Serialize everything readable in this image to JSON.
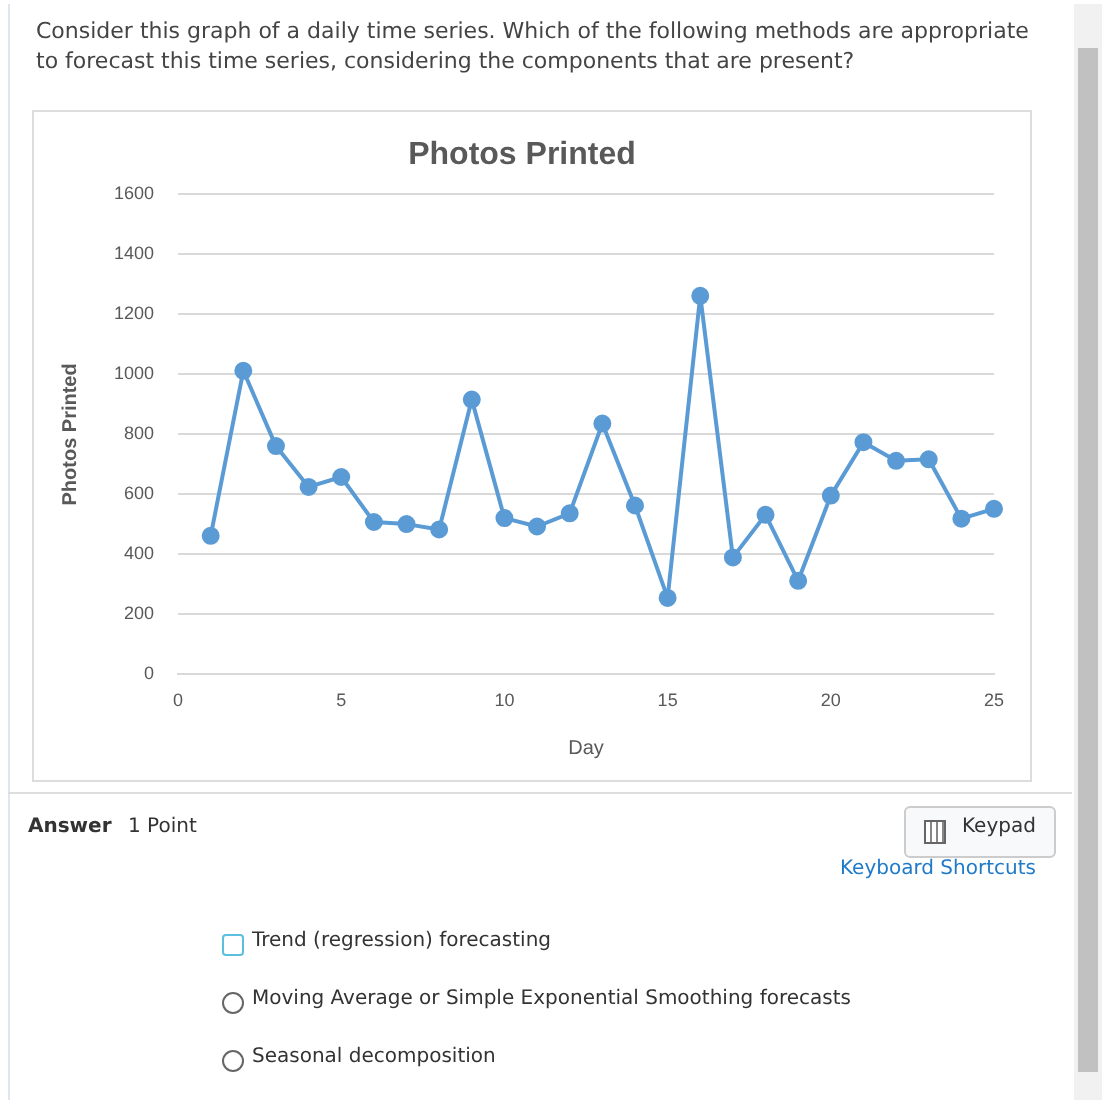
{
  "chart_data": {
    "type": "line",
    "title": "Photos Printed",
    "xlabel": "Day",
    "ylabel": "Photos Printed",
    "x": [
      1,
      2,
      3,
      4,
      5,
      6,
      7,
      8,
      9,
      10,
      11,
      12,
      13,
      14,
      15,
      16,
      17,
      18,
      19,
      20,
      21,
      22,
      23,
      24,
      25
    ],
    "series": [
      {
        "color": "#5b9bd5",
        "values": [
          462,
          1012,
          761,
          625,
          658,
          508,
          501,
          483,
          916,
          521,
          493,
          537,
          836,
          563,
          255,
          1262,
          390,
          532,
          312,
          596,
          774,
          712,
          717,
          519,
          552
        ]
      }
    ],
    "xlim": [
      0,
      25
    ],
    "xticks": [
      0,
      5,
      10,
      15,
      20,
      25
    ],
    "ylim": [
      0,
      1600
    ],
    "yticks": [
      0,
      200,
      400,
      600,
      800,
      1000,
      1200,
      1400,
      1600
    ],
    "grid": "y",
    "marker": "circle",
    "line_style": "solid",
    "legend": false,
    "annotations": [
      "Consider this graph of a daily time series. Which of the following methods are appropriate to forecast this time series, considering the components that are present?",
      "Answer",
      "1 Point",
      "Keypad",
      "Keyboard Shortcuts",
      "Trend (regression) forecasting",
      "Moving Average or Simple Exponential Smoothing forecasts",
      "Seasonal decomposition"
    ]
  }
}
